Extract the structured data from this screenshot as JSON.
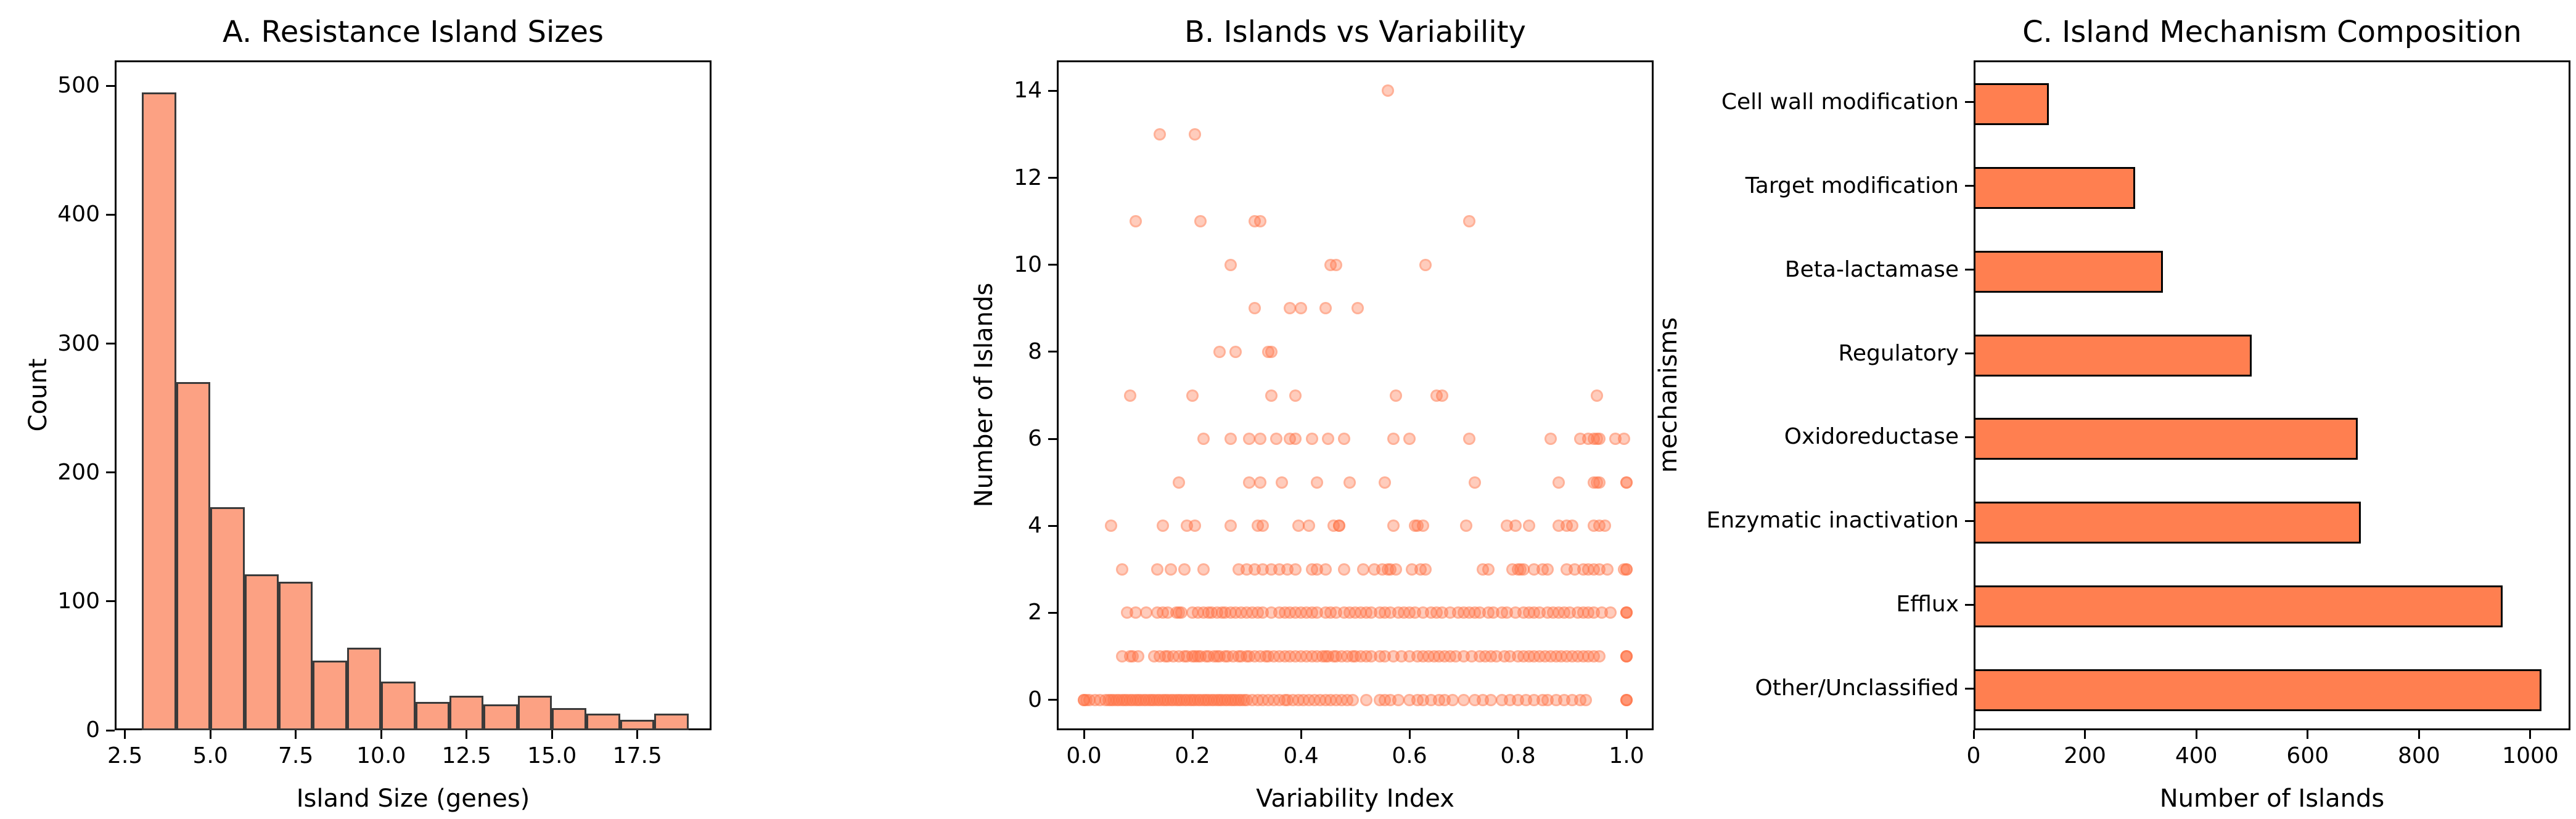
{
  "figure_background": "#ffffff",
  "colors": {
    "hist_fill": "#FCA183",
    "hist_edge": "#3A3A3A",
    "barh_fill": "#FF7F50",
    "barh_edge": "#000000",
    "scatter": "#FF7245",
    "scatter_alpha": 0.36,
    "axis": "#000000"
  },
  "chart_data": [
    {
      "type": "bar",
      "subtype": "histogram",
      "title": "A. Resistance Island Sizes",
      "xlabel": "Island Size (genes)",
      "ylabel": "Count",
      "bin_edges": [
        3,
        4,
        5,
        6,
        7,
        8,
        9,
        10,
        11,
        12,
        13,
        14,
        15,
        16,
        17,
        18,
        19
      ],
      "counts": [
        495,
        270,
        173,
        121,
        115,
        54,
        64,
        38,
        22,
        27,
        20,
        27,
        17,
        13,
        8,
        13
      ],
      "xlim": [
        2.2,
        19.67
      ],
      "ylim": [
        0,
        519.75
      ],
      "xticks": [
        2.5,
        5.0,
        7.5,
        10.0,
        12.5,
        15.0,
        17.5
      ],
      "xtick_labels": [
        "2.5",
        "5.0",
        "7.5",
        "10.0",
        "12.5",
        "15.0",
        "17.5"
      ],
      "yticks": [
        0,
        100,
        200,
        300,
        400,
        500
      ],
      "ytick_labels": [
        "0",
        "100",
        "200",
        "300",
        "400",
        "500"
      ],
      "grid": false
    },
    {
      "type": "scatter",
      "title": "B. Islands vs Variability",
      "xlabel": "Variability Index",
      "ylabel": "Number of Islands",
      "xlim": [
        -0.05,
        1.05
      ],
      "ylim": [
        -0.7,
        14.7
      ],
      "xticks": [
        0.0,
        0.2,
        0.4,
        0.6,
        0.8,
        1.0
      ],
      "xtick_labels": [
        "0.0",
        "0.2",
        "0.4",
        "0.6",
        "0.8",
        "1.0"
      ],
      "yticks": [
        0,
        2,
        4,
        6,
        8,
        10,
        12,
        14
      ],
      "ytick_labels": [
        "0",
        "2",
        "4",
        "6",
        "8",
        "10",
        "12",
        "14"
      ],
      "grid": false,
      "points_by_row": {
        "0": [
          0.0,
          0.0,
          0.005,
          0.01,
          0.02,
          0.03,
          0.04,
          0.045,
          0.05,
          0.055,
          0.06,
          0.065,
          0.07,
          0.075,
          0.08,
          0.085,
          0.09,
          0.095,
          0.1,
          0.105,
          0.11,
          0.115,
          0.12,
          0.125,
          0.13,
          0.135,
          0.14,
          0.145,
          0.15,
          0.155,
          0.16,
          0.165,
          0.17,
          0.175,
          0.18,
          0.185,
          0.19,
          0.195,
          0.2,
          0.205,
          0.21,
          0.215,
          0.22,
          0.225,
          0.23,
          0.235,
          0.24,
          0.245,
          0.25,
          0.255,
          0.26,
          0.265,
          0.27,
          0.275,
          0.28,
          0.285,
          0.29,
          0.295,
          0.3,
          0.31,
          0.32,
          0.33,
          0.34,
          0.35,
          0.36,
          0.37,
          0.375,
          0.385,
          0.395,
          0.405,
          0.415,
          0.425,
          0.435,
          0.445,
          0.455,
          0.465,
          0.475,
          0.485,
          0.495,
          0.52,
          0.545,
          0.555,
          0.565,
          0.58,
          0.6,
          0.615,
          0.625,
          0.64,
          0.655,
          0.665,
          0.68,
          0.7,
          0.72,
          0.735,
          0.75,
          0.77,
          0.785,
          0.8,
          0.815,
          0.83,
          0.845,
          0.855,
          0.87,
          0.885,
          0.9,
          0.915,
          0.925,
          1.0,
          1.0,
          1.0
        ],
        "1": [
          0.07,
          0.085,
          0.09,
          0.1,
          0.13,
          0.14,
          0.15,
          0.155,
          0.165,
          0.175,
          0.185,
          0.19,
          0.2,
          0.205,
          0.21,
          0.215,
          0.225,
          0.23,
          0.24,
          0.245,
          0.25,
          0.26,
          0.265,
          0.275,
          0.285,
          0.29,
          0.3,
          0.305,
          0.315,
          0.325,
          0.335,
          0.34,
          0.35,
          0.36,
          0.37,
          0.38,
          0.39,
          0.4,
          0.41,
          0.42,
          0.43,
          0.44,
          0.445,
          0.45,
          0.46,
          0.465,
          0.475,
          0.485,
          0.495,
          0.5,
          0.51,
          0.52,
          0.53,
          0.545,
          0.555,
          0.57,
          0.585,
          0.6,
          0.615,
          0.625,
          0.635,
          0.645,
          0.655,
          0.665,
          0.675,
          0.685,
          0.7,
          0.715,
          0.73,
          0.74,
          0.75,
          0.76,
          0.775,
          0.785,
          0.8,
          0.81,
          0.82,
          0.83,
          0.84,
          0.85,
          0.86,
          0.87,
          0.88,
          0.89,
          0.9,
          0.91,
          0.92,
          0.93,
          0.94,
          0.95,
          1.0,
          1.0,
          1.0
        ],
        "2": [
          0.08,
          0.095,
          0.115,
          0.135,
          0.145,
          0.155,
          0.17,
          0.175,
          0.18,
          0.2,
          0.21,
          0.22,
          0.23,
          0.235,
          0.245,
          0.255,
          0.26,
          0.27,
          0.28,
          0.29,
          0.3,
          0.31,
          0.32,
          0.33,
          0.345,
          0.36,
          0.37,
          0.38,
          0.39,
          0.4,
          0.41,
          0.42,
          0.43,
          0.445,
          0.455,
          0.465,
          0.48,
          0.49,
          0.5,
          0.51,
          0.52,
          0.53,
          0.545,
          0.555,
          0.565,
          0.58,
          0.59,
          0.6,
          0.61,
          0.625,
          0.64,
          0.65,
          0.66,
          0.675,
          0.69,
          0.7,
          0.71,
          0.72,
          0.73,
          0.745,
          0.755,
          0.77,
          0.78,
          0.795,
          0.81,
          0.82,
          0.83,
          0.84,
          0.855,
          0.865,
          0.875,
          0.885,
          0.895,
          0.91,
          0.92,
          0.93,
          0.94,
          0.955,
          0.97,
          1.0,
          1.0,
          1.0
        ],
        "3": [
          0.07,
          0.135,
          0.16,
          0.185,
          0.22,
          0.285,
          0.3,
          0.315,
          0.33,
          0.345,
          0.36,
          0.375,
          0.39,
          0.42,
          0.43,
          0.445,
          0.48,
          0.515,
          0.535,
          0.55,
          0.56,
          0.565,
          0.575,
          0.605,
          0.62,
          0.63,
          0.735,
          0.745,
          0.79,
          0.8,
          0.805,
          0.81,
          0.83,
          0.845,
          0.855,
          0.89,
          0.905,
          0.92,
          0.93,
          0.94,
          0.95,
          0.965,
          0.995,
          1.0,
          1.0
        ],
        "4": [
          0.05,
          0.145,
          0.19,
          0.205,
          0.27,
          0.32,
          0.33,
          0.395,
          0.415,
          0.46,
          0.47,
          0.47,
          0.57,
          0.61,
          0.615,
          0.625,
          0.705,
          0.78,
          0.795,
          0.82,
          0.875,
          0.89,
          0.9,
          0.94,
          0.95,
          0.96
        ],
        "5": [
          0.175,
          0.305,
          0.325,
          0.365,
          0.43,
          0.49,
          0.555,
          0.72,
          0.875,
          0.94,
          0.945,
          0.95,
          1.0,
          1.0
        ],
        "6": [
          0.22,
          0.27,
          0.305,
          0.325,
          0.355,
          0.38,
          0.39,
          0.42,
          0.45,
          0.48,
          0.57,
          0.6,
          0.71,
          0.86,
          0.915,
          0.93,
          0.94,
          0.945,
          0.95,
          0.98,
          0.995
        ],
        "7": [
          0.085,
          0.2,
          0.345,
          0.39,
          0.575,
          0.65,
          0.66,
          0.945
        ],
        "8": [
          0.25,
          0.28,
          0.34,
          0.345
        ],
        "9": [
          0.315,
          0.38,
          0.4,
          0.445,
          0.505
        ],
        "10": [
          0.27,
          0.455,
          0.465,
          0.63
        ],
        "11": [
          0.095,
          0.215,
          0.315,
          0.325,
          0.71
        ],
        "13": [
          0.14,
          0.205
        ],
        "14": [
          0.56
        ]
      }
    },
    {
      "type": "bar",
      "subtype": "barh",
      "title": "C. Island Mechanism Composition",
      "xlabel": "Number of Islands",
      "ylabel": "mechanisms",
      "categories": [
        "Cell wall modification",
        "Target modification",
        "Beta-lactamase",
        "Regulatory",
        "Oxidoreductase",
        "Enzymatic inactivation",
        "Efflux",
        "Other/Unclassified"
      ],
      "values": [
        135,
        290,
        340,
        500,
        690,
        695,
        950,
        1020
      ],
      "xlim": [
        0,
        1072
      ],
      "xticks": [
        0,
        200,
        400,
        600,
        800,
        1000
      ],
      "xtick_labels": [
        "0",
        "200",
        "400",
        "600",
        "800",
        "1000"
      ],
      "grid": false,
      "legend": null
    }
  ]
}
